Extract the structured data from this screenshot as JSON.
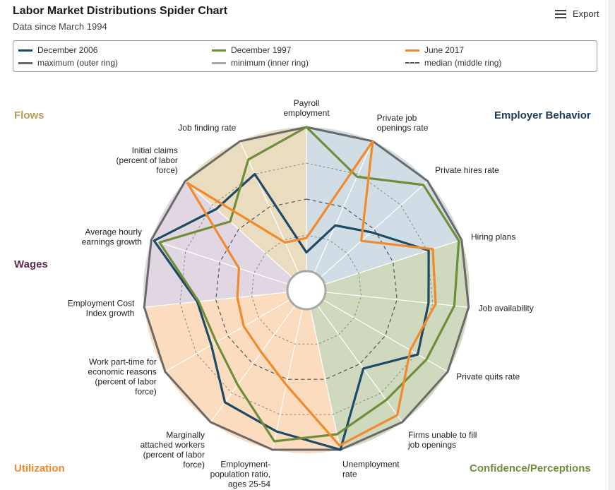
{
  "header": {
    "title": "Labor Market Distributions Spider Chart",
    "subtitle": "Data since March 1994",
    "export_label": "Export"
  },
  "legend": {
    "items": [
      {
        "label": "December 2006",
        "color": "#1e4a66",
        "style": "solid"
      },
      {
        "label": "December 1997",
        "color": "#6e8e3a",
        "style": "solid"
      },
      {
        "label": "June 2017",
        "color": "#f08a2c",
        "style": "solid"
      },
      {
        "label": "maximum (outer ring)",
        "color": "#6a6a6a",
        "style": "solid"
      },
      {
        "label": "minimum (inner ring)",
        "color": "#a8a8a8",
        "style": "solid"
      },
      {
        "label": "median (middle ring)",
        "color": "#555555",
        "style": "dashed"
      }
    ]
  },
  "categories": [
    {
      "label": "Flows",
      "color": "#b99a5a"
    },
    {
      "label": "Employer Behavior",
      "color": "#1f3b57"
    },
    {
      "label": "Wages",
      "color": "#5b2c4f"
    },
    {
      "label": "Utilization",
      "color": "#f08a2c"
    },
    {
      "label": "Confidence/Perceptions",
      "color": "#6e8e3a"
    }
  ],
  "chart_data": {
    "type": "radar",
    "title": "Labor Market Distributions Spider Chart",
    "subtitle": "Data since March 1994",
    "scale": "percentile of distribution (0 = minimum, 0.5 = median, 1 = maximum)",
    "rings": {
      "min": 0,
      "median": 0.5,
      "max": 1
    },
    "axes": [
      "Payroll employment",
      "Private job openings rate",
      "Private hires rate",
      "Hiring plans",
      "Job availability",
      "Private quits rate",
      "Firms unable to fill job openings",
      "Unemployment rate",
      "Employment-population ratio, ages 25-54",
      "Marginally attached workers (percent of labor force)",
      "Work part-time for economic reasons (percent of labor force)",
      "Employment Cost Index growth",
      "Average hourly earnings growth",
      "Initial claims (percent of labor force)",
      "Job finding rate"
    ],
    "axis_groups": [
      {
        "group": "Employer Behavior",
        "axes": [
          0,
          1,
          2
        ]
      },
      {
        "group": "Confidence/Perceptions",
        "axes": [
          3,
          4,
          5,
          6
        ]
      },
      {
        "group": "Utilization",
        "axes": [
          7,
          8,
          9,
          10
        ]
      },
      {
        "group": "Wages",
        "axes": [
          11,
          12
        ]
      },
      {
        "group": "Flows",
        "axes": [
          13,
          14
        ]
      }
    ],
    "series": [
      {
        "name": "December 2006",
        "color": "#1e4a66",
        "values": [
          0.13,
          0.36,
          0.47,
          0.76,
          0.72,
          0.76,
          0.54,
          1.0,
          0.87,
          0.83,
          0.63,
          0.63,
          0.98,
          0.71,
          0.75
        ]
      },
      {
        "name": "December 1997",
        "color": "#6e8e3a",
        "values": [
          1.0,
          0.73,
          0.96,
          0.98,
          0.9,
          0.83,
          0.81,
          0.89,
          0.94,
          0.68,
          0.59,
          0.62,
          0.94,
          0.58,
          0.86
        ]
      },
      {
        "name": "June 2017",
        "color": "#f08a2c",
        "values": [
          0.23,
          1.0,
          0.38,
          0.79,
          0.77,
          0.7,
          0.94,
          0.97,
          0.54,
          0.4,
          0.37,
          0.35,
          0.36,
          0.98,
          0.23
        ]
      }
    ]
  }
}
